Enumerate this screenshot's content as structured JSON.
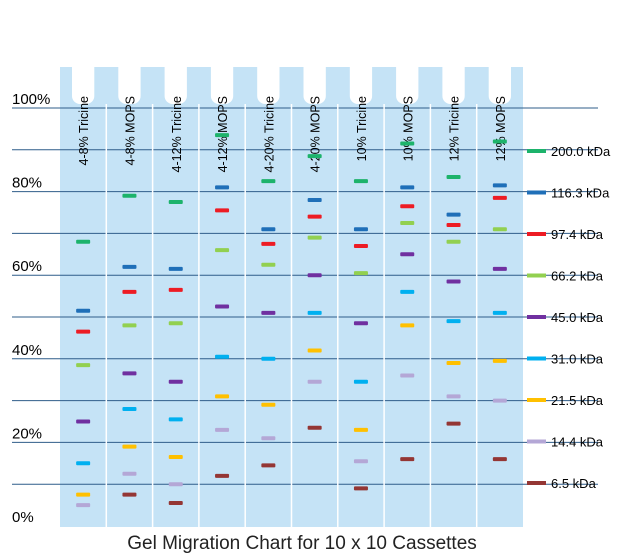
{
  "chart_data": {
    "type": "scatter",
    "title": "Gel Migration Chart for 10 x 10 Cassettes",
    "categories": [
      "4-8% Tricine",
      "4-8% MOPS",
      "4-12% Tricine",
      "4-12% MOPS",
      "4-20% Tricine",
      "4-20% MOPS",
      "10% Tricine",
      "10% MOPS",
      "12% Tricine",
      "12% MOPS"
    ],
    "yticks": [
      "0%",
      "20%",
      "40%",
      "60%",
      "80%",
      "100%"
    ],
    "ylim": [
      0,
      100
    ],
    "grid": true,
    "legend_position": "right",
    "series": [
      {
        "name": "200.0 kDa",
        "color": "#1db36b",
        "values": [
          68,
          79,
          77.5,
          93.5,
          82.5,
          88.5,
          82.5,
          91.5,
          83.5,
          92
        ]
      },
      {
        "name": "116.3 kDa",
        "color": "#1f6fb8",
        "values": [
          51.5,
          62,
          61.5,
          81,
          71,
          78,
          71,
          81,
          74.5,
          81.5
        ]
      },
      {
        "name": "97.4 kDa",
        "color": "#ed1c24",
        "values": [
          46.5,
          56,
          56.5,
          75.5,
          67.5,
          74,
          67,
          76.5,
          72,
          78.5
        ]
      },
      {
        "name": "66.2 kDa",
        "color": "#92d050",
        "values": [
          38.5,
          48,
          48.5,
          66,
          62.5,
          69,
          60.5,
          72.5,
          68,
          71
        ]
      },
      {
        "name": "45.0 kDa",
        "color": "#7030a0",
        "values": [
          25,
          36.5,
          34.5,
          52.5,
          51,
          60,
          48.5,
          65,
          58.5,
          61.5
        ]
      },
      {
        "name": "31.0 kDa",
        "color": "#00b0f0",
        "values": [
          15,
          28,
          25.5,
          40.5,
          40,
          51,
          34.5,
          56,
          49,
          51
        ]
      },
      {
        "name": "21.5 kDa",
        "color": "#ffc000",
        "values": [
          7.5,
          19,
          16.5,
          31,
          29,
          42,
          23,
          48,
          39,
          39.5
        ]
      },
      {
        "name": "14.4 kDa",
        "color": "#b4a7d6",
        "values": [
          5,
          12.5,
          10,
          23,
          21,
          34.5,
          15.5,
          36,
          31,
          30
        ]
      },
      {
        "name": "6.5 kDa",
        "color": "#943634",
        "values": [
          null,
          7.5,
          5.5,
          12,
          14.5,
          23.5,
          9,
          16,
          24.5,
          16
        ]
      }
    ]
  },
  "colors": {
    "background": "#c5e3f6",
    "grid": "#2f5d8a",
    "separator": "#ffffff"
  }
}
